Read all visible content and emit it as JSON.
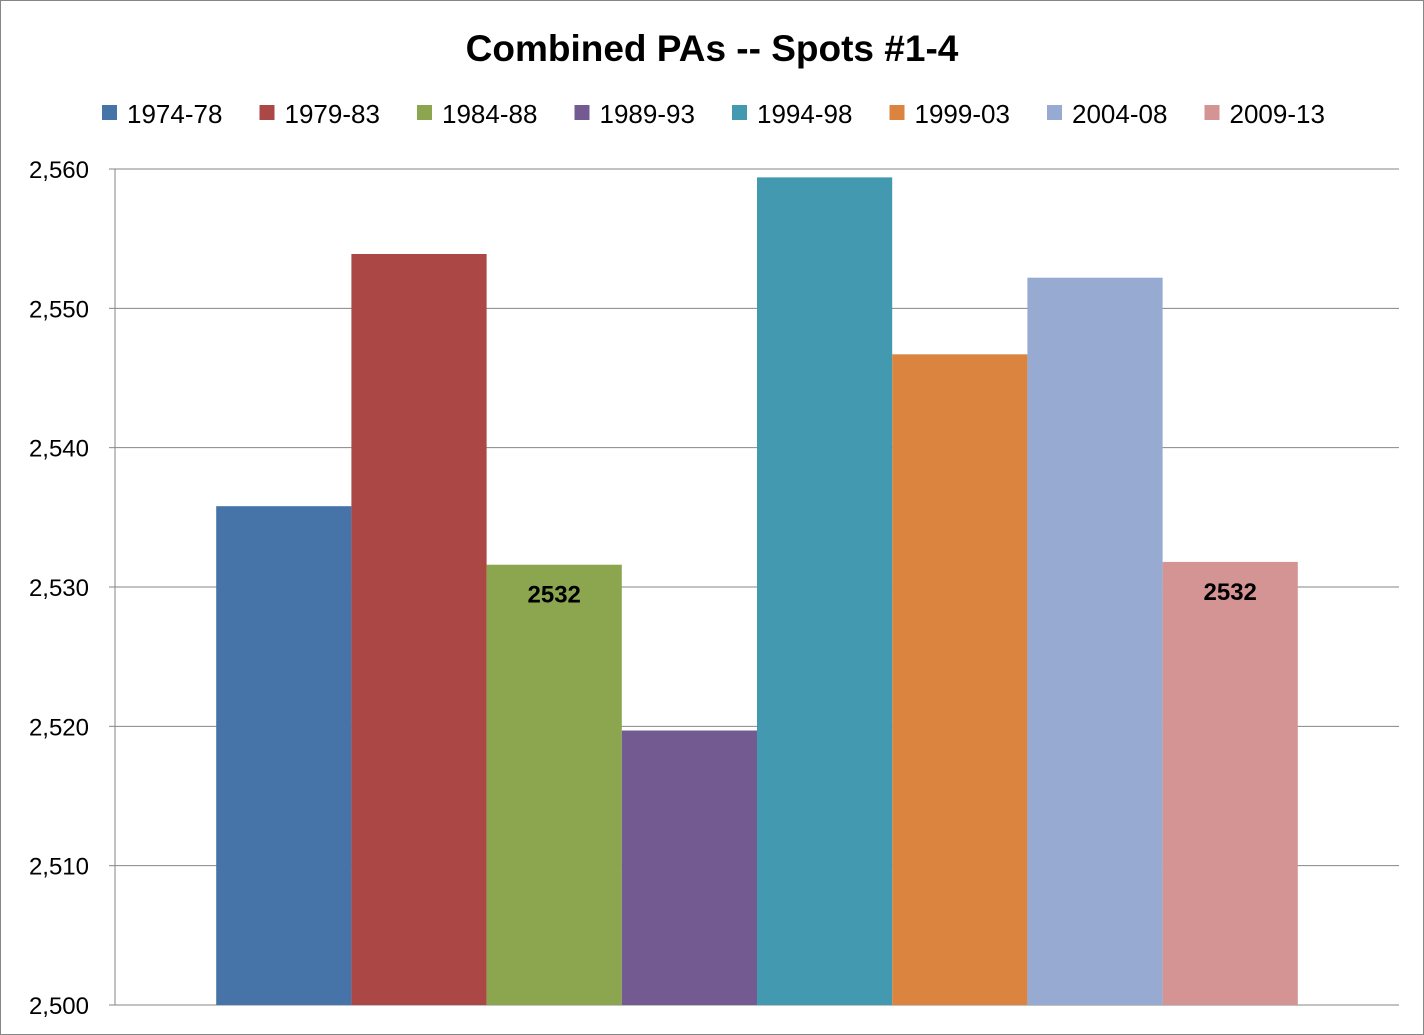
{
  "chart_data": {
    "type": "bar",
    "title": "Combined PAs -- Spots #1-4",
    "xlabel": "",
    "ylabel": "",
    "ylim": [
      2500,
      2560
    ],
    "yticks": [
      2500,
      2510,
      2520,
      2530,
      2540,
      2550,
      2560
    ],
    "ytick_labels": [
      "2,500",
      "2,510",
      "2,520",
      "2,530",
      "2,540",
      "2,550",
      "2,560"
    ],
    "grid": true,
    "legend_position": "top",
    "categories": [
      ""
    ],
    "series": [
      {
        "name": "1974-78",
        "values": [
          2535.8
        ],
        "color": "#4674A8"
      },
      {
        "name": "1979-83",
        "values": [
          2553.9
        ],
        "color": "#AB4745"
      },
      {
        "name": "1984-88",
        "values": [
          2531.6
        ],
        "color": "#8CA650",
        "data_label": "2532"
      },
      {
        "name": "1989-93",
        "values": [
          2519.7
        ],
        "color": "#735B91"
      },
      {
        "name": "1994-98",
        "values": [
          2559.4
        ],
        "color": "#439AB0"
      },
      {
        "name": "1999-03",
        "values": [
          2546.7
        ],
        "color": "#DB843F"
      },
      {
        "name": "2004-08",
        "values": [
          2552.2
        ],
        "color": "#97ABD2"
      },
      {
        "name": "2009-13",
        "values": [
          2531.8
        ],
        "color": "#D49493",
        "data_label": "2532"
      }
    ]
  }
}
